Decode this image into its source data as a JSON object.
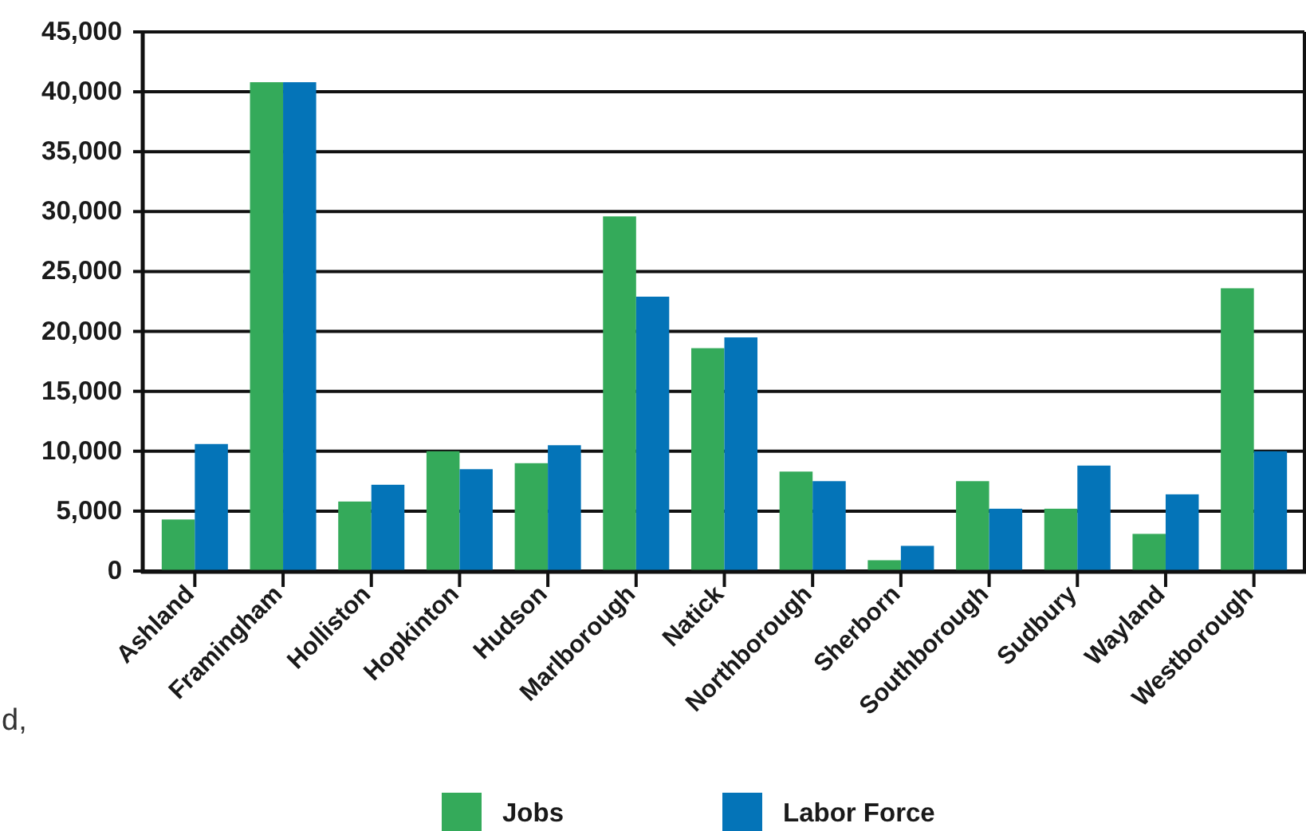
{
  "chart_data": {
    "type": "bar",
    "categories": [
      "Ashland",
      "Framingham",
      "Holliston",
      "Hopkinton",
      "Hudson",
      "Marlborough",
      "Natick",
      "Northborough",
      "Sherborn",
      "Southborough",
      "Sudbury",
      "Wayland",
      "Westborough"
    ],
    "series": [
      {
        "name": "Jobs",
        "color": "#34aa5a",
        "values": [
          4300,
          40800,
          5800,
          10000,
          9000,
          29600,
          18600,
          8300,
          900,
          7500,
          5200,
          3100,
          23600
        ]
      },
      {
        "name": "Labor Force",
        "color": "#0474b8",
        "values": [
          10600,
          40800,
          7200,
          8500,
          10500,
          22900,
          19500,
          7500,
          2100,
          5200,
          8800,
          6400,
          10000
        ]
      }
    ],
    "ylim": [
      0,
      45000
    ],
    "yticks": [
      {
        "value": 0,
        "label": "0"
      },
      {
        "value": 5000,
        "label": "5,000"
      },
      {
        "value": 10000,
        "label": "10,000"
      },
      {
        "value": 15000,
        "label": "15,000"
      },
      {
        "value": 20000,
        "label": "20,000"
      },
      {
        "value": 25000,
        "label": "25,000"
      },
      {
        "value": 30000,
        "label": "30,000"
      },
      {
        "value": 35000,
        "label": "35,000"
      },
      {
        "value": 40000,
        "label": "40,000"
      },
      {
        "value": 45000,
        "label": "45,000"
      }
    ],
    "grid": "y",
    "legend": "bottom",
    "annotations": [
      "d,"
    ]
  }
}
